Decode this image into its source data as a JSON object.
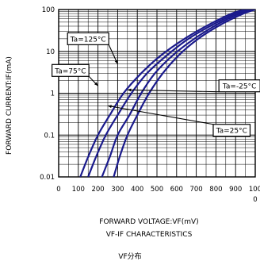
{
  "chart_data": {
    "type": "line",
    "xlabel": "FORWARD VOLTAGE:VF(mV)",
    "ylabel": "FORWARD CURRENT:IF(mA)",
    "subtitle": "VF-IF CHARACTERISTICS",
    "caption": "VF分布",
    "xlim": [
      0,
      1000
    ],
    "ylim": [
      0.01,
      100
    ],
    "yscale": "log",
    "grid": true,
    "x_tick_labels": [
      "0",
      "100",
      "200",
      "300",
      "400",
      "500",
      "600",
      "700",
      "800",
      "900",
      "100",
      "0"
    ],
    "y_tick_labels": [
      "100",
      "10",
      "1",
      "0.1",
      "0.01"
    ],
    "series": [
      {
        "name": "Ta=125°C",
        "x": [
          110,
          150,
          200,
          260,
          330,
          420,
          520,
          640,
          770,
          880,
          950
        ],
        "y": [
          0.01,
          0.03,
          0.1,
          0.3,
          1,
          3,
          8,
          20,
          45,
          80,
          100
        ]
      },
      {
        "name": "Ta=75°C",
        "x": [
          150,
          190,
          240,
          300,
          370,
          450,
          550,
          660,
          790,
          900,
          970
        ],
        "y": [
          0.01,
          0.03,
          0.1,
          0.3,
          1,
          3,
          8,
          20,
          45,
          80,
          100
        ]
      },
      {
        "name": "Ta=25°C",
        "x": [
          220,
          260,
          300,
          360,
          420,
          490,
          580,
          690,
          810,
          920,
          990
        ],
        "y": [
          0.01,
          0.03,
          0.1,
          0.3,
          1,
          3,
          8,
          20,
          45,
          80,
          100
        ]
      },
      {
        "name": "Ta=-25°C",
        "x": [
          280,
          310,
          350,
          400,
          460,
          530,
          610,
          710,
          830,
          940,
          1000
        ],
        "y": [
          0.01,
          0.03,
          0.1,
          0.3,
          1,
          3,
          8,
          20,
          45,
          80,
          100
        ]
      }
    ],
    "annotations": [
      {
        "text": "Ta=125°C",
        "x": 150,
        "y": 20,
        "target_x": 300,
        "target_y": 5
      },
      {
        "text": "Ta=75°C",
        "x": 60,
        "y": 3.5,
        "target_x": 200,
        "target_y": 1.5
      },
      {
        "text": "Ta=-25°C",
        "x": 920,
        "y": 1.5,
        "target_x": 350,
        "target_y": 1.2
      },
      {
        "text": "Ta=25°C",
        "x": 880,
        "y": 0.13,
        "target_x": 250,
        "target_y": 0.5
      }
    ],
    "colors": {
      "curve": "#1a1a8c",
      "grid": "#000000"
    }
  }
}
